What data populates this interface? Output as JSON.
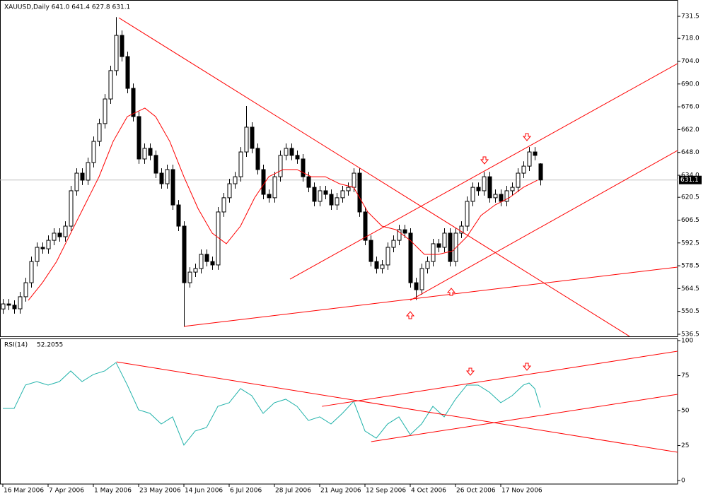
{
  "chart_data": [
    {
      "type": "candlestick",
      "title": "XAUUSD,Daily  641.0 641.4 627.8 631.1",
      "candle_color": "#000000",
      "bull_fill": "#ffffff",
      "bid_line_color": "#c0c0c0",
      "xlim": [
        -0.5,
        119.25
      ],
      "ylim": [
        535.2,
        740.2
      ],
      "yticks": [
        731.5,
        {
          "value": 718.0,
          "label": "718.0"
        },
        {
          "value": 704.0,
          "label": "704.0"
        },
        {
          "value": 690.0,
          "label": "690.0"
        },
        {
          "value": 676.0,
          "label": "676.0"
        },
        {
          "value": 662.0,
          "label": "662.0"
        },
        {
          "value": 648.0,
          "label": "648.0"
        },
        {
          "value": 634.0,
          "label": "634.0"
        },
        620.5,
        606.5,
        592.5,
        578.5,
        564.5,
        550.5,
        536.5
      ],
      "open": [
        552.0,
        555.1,
        554.3,
        552.1,
        559.5,
        568.1,
        581.1,
        589.8,
        588.9,
        594.1,
        598.5,
        596.3,
        602.8,
        624.5,
        635.3,
        631.0,
        641.8,
        654.8,
        665.7,
        680.8,
        698.2,
        719.8,
        706.8,
        687.3,
        670.0,
        644.0,
        650.5,
        646.2,
        635.3,
        628.8,
        637.5,
        615.8,
        602.8,
        568.1,
        574.6,
        576.8,
        585.5,
        581.1,
        579.0,
        611.5,
        620.2,
        628.8,
        633.1,
        648.3,
        663.5,
        650.5,
        637.5,
        622.3,
        620.2,
        633.1,
        646.2,
        650.5,
        646.2,
        644.0,
        633.1,
        626.6,
        618.0,
        624.5,
        622.3,
        615.8,
        620.2,
        624.5,
        626.6,
        635.3,
        611.5,
        594.1,
        581.1,
        576.8,
        579.0,
        589.8,
        594.1,
        600.6,
        598.5,
        568.1,
        563.8,
        576.8,
        581.1,
        592.0,
        589.8,
        598.5,
        581.1,
        598.5,
        602.8,
        618.0,
        626.6,
        624.5,
        633.1,
        620.2,
        622.3,
        618.0,
        624.5,
        626.6,
        635.3,
        639.6,
        648.3,
        641.0
      ],
      "high": [
        558.1,
        558.1,
        557.3,
        562.5,
        571.1,
        584.1,
        592.8,
        592.8,
        597.1,
        601.5,
        601.5,
        605.8,
        627.5,
        638.3,
        638.3,
        644.8,
        657.8,
        668.7,
        683.8,
        701.2,
        731.0,
        722.8,
        709.8,
        690.3,
        673.0,
        653.5,
        653.5,
        649.2,
        638.3,
        640.5,
        640.5,
        618.8,
        605.8,
        577.6,
        579.8,
        588.5,
        588.5,
        584.1,
        614.5,
        623.2,
        631.8,
        636.1,
        651.3,
        676.5,
        666.5,
        653.5,
        640.5,
        625.3,
        636.1,
        649.2,
        653.5,
        653.5,
        649.2,
        647.0,
        636.1,
        629.6,
        627.5,
        627.5,
        625.3,
        623.2,
        627.5,
        629.6,
        638.3,
        638.3,
        614.5,
        597.1,
        584.1,
        582.0,
        592.8,
        597.1,
        603.6,
        603.6,
        601.5,
        571.1,
        579.8,
        584.1,
        595.0,
        595.0,
        601.5,
        601.5,
        601.5,
        605.8,
        621.0,
        629.6,
        629.6,
        636.1,
        636.1,
        625.3,
        625.3,
        627.5,
        629.6,
        638.3,
        642.6,
        651.3,
        651.3,
        641.4
      ],
      "low": [
        549.0,
        551.3,
        549.1,
        549.1,
        556.5,
        565.1,
        578.1,
        585.9,
        585.9,
        591.1,
        593.3,
        593.3,
        599.8,
        621.5,
        628.0,
        628.0,
        638.8,
        651.8,
        662.7,
        677.8,
        695.2,
        703.8,
        684.3,
        667.0,
        641.0,
        641.0,
        643.2,
        632.3,
        625.8,
        625.8,
        612.8,
        599.8,
        541.0,
        565.1,
        571.6,
        573.8,
        578.1,
        576.0,
        576.0,
        608.5,
        617.2,
        625.8,
        630.1,
        645.3,
        647.5,
        634.5,
        619.3,
        617.2,
        617.2,
        630.1,
        643.2,
        643.2,
        641.0,
        630.1,
        623.6,
        615.0,
        615.0,
        619.3,
        612.8,
        612.8,
        617.2,
        621.5,
        623.6,
        608.5,
        591.1,
        578.1,
        573.8,
        573.8,
        576.0,
        586.8,
        591.1,
        595.5,
        565.1,
        557.5,
        560.8,
        573.8,
        578.1,
        586.8,
        586.8,
        578.1,
        578.1,
        595.5,
        599.8,
        615.0,
        621.5,
        621.5,
        617.2,
        617.2,
        615.0,
        615.0,
        621.5,
        623.6,
        632.3,
        636.6,
        643.2,
        627.8
      ],
      "close": [
        555.1,
        554.3,
        552.1,
        559.5,
        568.1,
        581.1,
        589.8,
        588.9,
        594.1,
        598.5,
        596.3,
        602.8,
        624.5,
        635.3,
        631.0,
        641.8,
        654.8,
        665.7,
        680.8,
        698.2,
        719.8,
        706.8,
        687.3,
        670.0,
        644.0,
        650.5,
        646.2,
        635.3,
        628.8,
        637.5,
        615.8,
        602.8,
        568.1,
        574.6,
        576.8,
        585.5,
        581.1,
        579.0,
        611.5,
        620.2,
        628.8,
        633.1,
        648.3,
        663.5,
        650.5,
        637.5,
        622.3,
        620.2,
        633.1,
        646.2,
        650.5,
        646.2,
        644.0,
        633.1,
        626.6,
        618.0,
        624.5,
        622.3,
        615.8,
        620.2,
        624.5,
        626.6,
        635.3,
        611.5,
        594.1,
        581.1,
        576.8,
        579.0,
        589.8,
        594.1,
        600.6,
        598.5,
        568.1,
        563.8,
        576.8,
        581.1,
        592.0,
        589.8,
        598.5,
        581.1,
        598.5,
        602.8,
        618.0,
        626.6,
        624.5,
        633.1,
        620.2,
        622.3,
        618.0,
        624.5,
        626.6,
        635.3,
        639.6,
        648.3,
        646.2,
        631.1
      ],
      "ma": {
        "color": "#ff0000",
        "x": [
          4.5,
          7,
          9.5,
          12,
          14.5,
          17,
          19.5,
          22,
          25.1,
          27,
          29.5,
          32,
          34.5,
          37,
          39.5,
          42,
          44.5,
          47,
          49.5,
          52,
          54.5,
          57,
          59.5,
          62,
          64.5,
          67,
          69.5,
          72,
          74.5,
          77,
          79.5,
          82,
          84.5,
          87,
          89.5,
          92,
          94.5
        ],
        "values": [
          557.3,
          568.1,
          581.1,
          598.5,
          615.8,
          633.1,
          654.8,
          670.0,
          675.2,
          670.0,
          654.8,
          633.1,
          613.6,
          598.5,
          592.0,
          602.8,
          620.2,
          633.1,
          637.5,
          637.5,
          633.1,
          633.1,
          628.8,
          626.6,
          611.5,
          602.8,
          600.6,
          594.1,
          585.5,
          585.5,
          587.6,
          596.3,
          609.3,
          615.8,
          620.2,
          626.6,
          631.0
        ]
      },
      "trendlines": [
        {
          "color": "#ff0000",
          "x": [
            20.5,
            110.75
          ],
          "values": [
            730.6,
            535.2
          ]
        },
        {
          "color": "#ff0000",
          "x": [
            32,
            119.25
          ],
          "values": [
            541.3,
            577.7
          ]
        },
        {
          "color": "#ff0000",
          "x": [
            50.75,
            119.25
          ],
          "values": [
            570.3,
            702.5
          ]
        },
        {
          "color": "#ff0000",
          "x": [
            72,
            119.25
          ],
          "values": [
            557.3,
            649.2
          ]
        }
      ]
    },
    {
      "type": "line",
      "title": "RSI(14)",
      "color": "#20b2aa",
      "xlim": [
        -0.5,
        119.25
      ],
      "ylim": [
        -2.5,
        101.5
      ],
      "yticks": [
        0,
        25,
        50,
        75,
        100
      ],
      "x": [
        0,
        2,
        4,
        6,
        8,
        10,
        12,
        14,
        16,
        18,
        20,
        22,
        24,
        26,
        28,
        30,
        32,
        34,
        36,
        38,
        40,
        42,
        44,
        46,
        48,
        50,
        52,
        54,
        56,
        58,
        60,
        62,
        64,
        66,
        68,
        70,
        72,
        74,
        76,
        78,
        80,
        82,
        84,
        86,
        88,
        90,
        92,
        93,
        94,
        95
      ],
      "values": [
        51.5,
        51.5,
        68.2,
        70.7,
        68.2,
        70.7,
        78.3,
        70.7,
        75.8,
        78.3,
        84.3,
        68.2,
        50.5,
        48.0,
        40.4,
        45.5,
        25.3,
        35.4,
        37.9,
        53.0,
        55.6,
        65.7,
        60.6,
        48.0,
        55.6,
        58.1,
        53.0,
        42.9,
        45.5,
        40.4,
        48.0,
        56.6,
        35.4,
        30.3,
        40.4,
        45.5,
        32.8,
        40.4,
        53.0,
        45.5,
        58.1,
        68.2,
        68.2,
        63.1,
        55.6,
        60.6,
        68.2,
        69.7,
        65.7,
        52.2055
      ],
      "trendlines": [
        {
          "color": "#ff0000",
          "x": [
            20.1,
            119.25
          ],
          "values": [
            84.8,
            20.2
          ]
        },
        {
          "color": "#ff0000",
          "x": [
            56.4,
            119.25
          ],
          "values": [
            53.0,
            92.4
          ]
        },
        {
          "color": "#ff0000",
          "x": [
            65.1,
            119.25
          ],
          "values": [
            27.8,
            61.6
          ]
        }
      ],
      "xticks": [
        {
          "value": 0,
          "label": "16 Mar 2006"
        },
        {
          "value": 8,
          "label": "7 Apr 2006"
        },
        {
          "value": 16,
          "label": "1 May 2006"
        },
        {
          "value": 24,
          "label": "23 May 2006"
        },
        {
          "value": 32,
          "label": "14 Jun 2006"
        },
        {
          "value": 40,
          "label": "6 Jul 2006"
        },
        {
          "value": 48,
          "label": "28 Jul 2006"
        },
        {
          "value": 56,
          "label": "21 Aug 2006"
        },
        {
          "value": 64,
          "label": "12 Sep 2006"
        },
        {
          "value": 72,
          "label": "4 Oct 2006"
        },
        {
          "value": 80,
          "label": "26 Oct 2006"
        },
        {
          "value": 88,
          "label": "17 Nov 2006"
        }
      ]
    }
  ]
}
